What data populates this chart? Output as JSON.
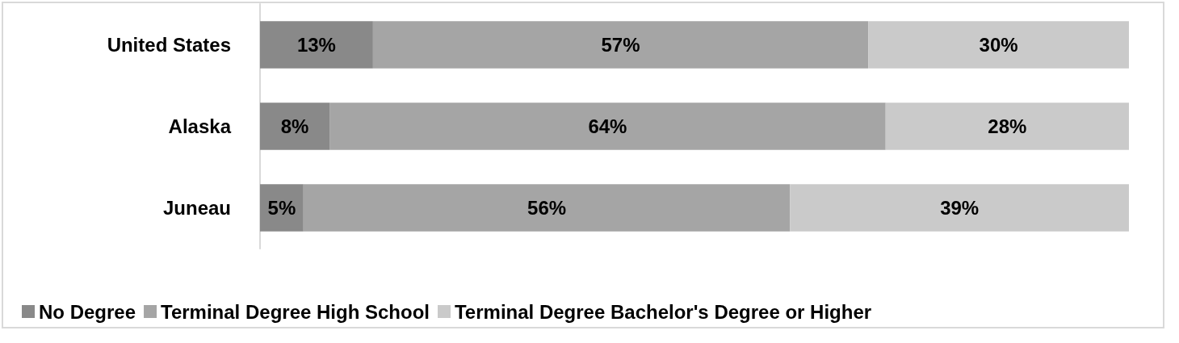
{
  "chart_data": {
    "type": "bar",
    "orientation": "horizontal",
    "stacked": true,
    "categories": [
      "United States",
      "Alaska",
      "Juneau"
    ],
    "series": [
      {
        "name": "No Degree",
        "color": "#898989",
        "values": [
          13,
          8,
          5
        ],
        "value_labels": [
          "13%",
          "8%",
          "5%"
        ]
      },
      {
        "name": "Terminal Degree High School",
        "color": "#a5a5a5",
        "values": [
          57,
          64,
          56
        ],
        "value_labels": [
          "57%",
          "64%",
          "56%"
        ]
      },
      {
        "name": "Terminal Degree Bachelor's Degree or Higher",
        "color": "#cacaca",
        "values": [
          30,
          28,
          39
        ],
        "value_labels": [
          "30%",
          "28%",
          "39%"
        ]
      }
    ],
    "xlim": [
      0,
      100
    ],
    "tick_labels": "y",
    "grid": false,
    "legend": "bottom"
  }
}
